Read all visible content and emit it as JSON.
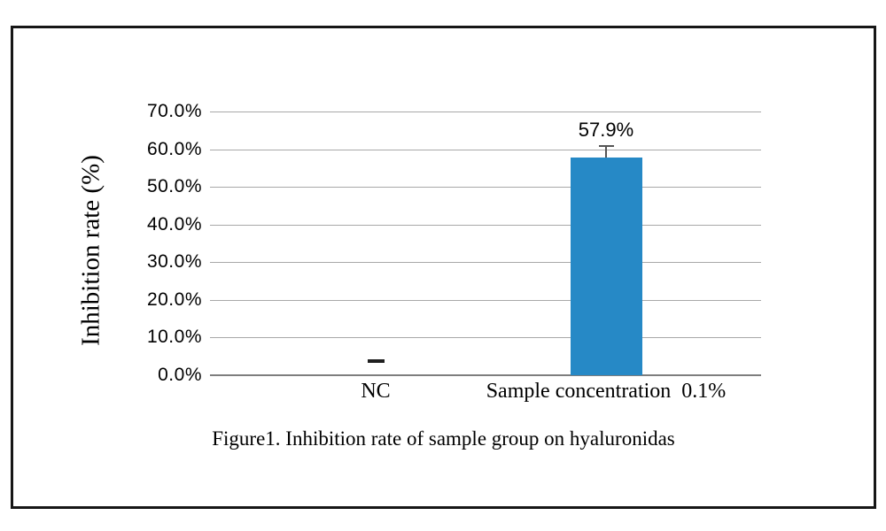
{
  "chart_data": {
    "type": "bar",
    "title": "Figure1. Inhibition rate of sample group on hyaluronidas",
    "xlabel": "",
    "ylabel": "Inhibition rate (%)",
    "ylim": [
      0,
      70
    ],
    "ytick_step_pct": 10,
    "ytick_labels": [
      "70.0%",
      "60.0%",
      "50.0%",
      "40.0%",
      "30.0%",
      "20.0%",
      "10.0%",
      "0.0%"
    ],
    "grid": "horizontal",
    "legend": "none",
    "categories": [
      "NC",
      "Sample concentration  0.1%"
    ],
    "values_pct": [
      3.8,
      57.9
    ],
    "points": [
      {
        "category": "NC",
        "value_pct": 3.8,
        "display": "dash-marker",
        "data_label": ""
      },
      {
        "category": "Sample concentration  0.1%",
        "value_pct": 57.9,
        "display": "bar",
        "data_label": "57.9%",
        "error_up_pct": 3.0
      }
    ],
    "colors": {
      "bar": "#2689C6",
      "gridline": "#A8A8A8",
      "axis_line": "#7E7E7E",
      "error_bar": "#555555",
      "dash_marker": "#1F1F1F",
      "text": "#000000"
    }
  }
}
